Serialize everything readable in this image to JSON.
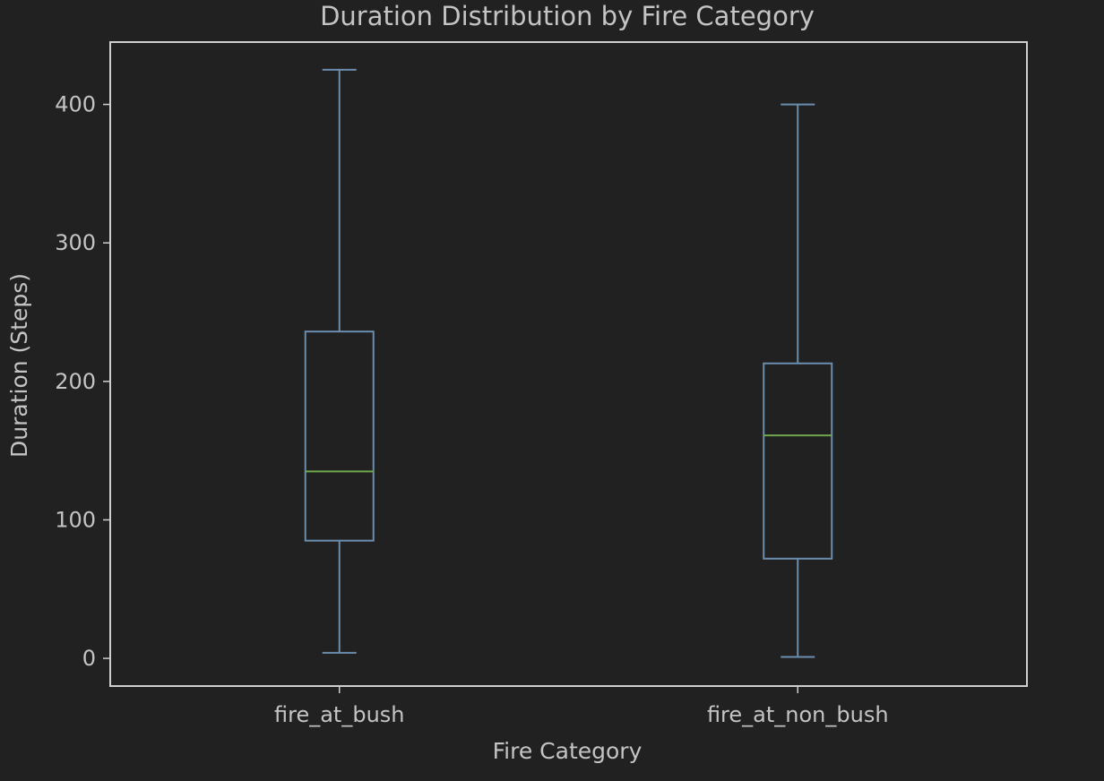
{
  "chart_data": {
    "type": "box",
    "title": "Duration Distribution by Fire Category",
    "xlabel": "Fire Category",
    "ylabel": "Duration (Steps)",
    "ylim": [
      -20,
      445
    ],
    "yticks": [
      0,
      100,
      200,
      300,
      400
    ],
    "grid": false,
    "colors": {
      "background": "#212121",
      "frame": "#cfcfcf",
      "box": "#6b8eae",
      "median": "#6fa84b",
      "text": "#c4c4c4"
    },
    "categories": [
      "fire_at_bush",
      "fire_at_non_bush"
    ],
    "boxes": [
      {
        "name": "fire_at_bush",
        "whisker_low": 4,
        "q1": 85,
        "median": 135,
        "q3": 236,
        "whisker_high": 425
      },
      {
        "name": "fire_at_non_bush",
        "whisker_low": 1,
        "q1": 72,
        "median": 161,
        "q3": 213,
        "whisker_high": 400
      }
    ]
  }
}
